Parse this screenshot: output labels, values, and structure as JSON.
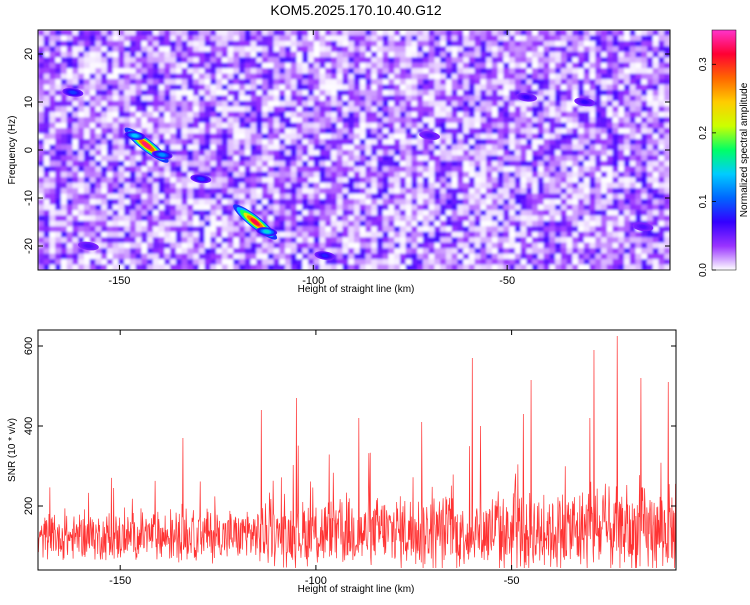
{
  "title": "KOM5.2025.170.10.40.G12",
  "chart_data": [
    {
      "type": "heatmap",
      "xlabel": "Height of straight line (km)",
      "ylabel": "Frequency (Hz)",
      "xlim": [
        -171,
        -8
      ],
      "ylim": [
        -25,
        25
      ],
      "xticks": [
        -150,
        -100,
        -50
      ],
      "yticks": [
        -20,
        -10,
        0,
        10,
        20
      ],
      "colorbar": {
        "label": "Normalized spectral amplitude",
        "range": [
          0,
          0.35
        ],
        "ticks": [
          0.0,
          0.1,
          0.2,
          0.3
        ],
        "colors": [
          "#ffffff",
          "#9933ff",
          "#3300ff",
          "#0066ff",
          "#00ccff",
          "#00ff66",
          "#ccff00",
          "#ffcc00",
          "#ff6600",
          "#ff0033",
          "#ff33cc"
        ]
      },
      "peaks": [
        {
          "x": -143,
          "y": 1,
          "amplitude": 0.33
        },
        {
          "x": -146,
          "y": 3,
          "amplitude": 0.14
        },
        {
          "x": -139,
          "y": -1,
          "amplitude": 0.12
        },
        {
          "x": -115,
          "y": -15,
          "amplitude": 0.32
        },
        {
          "x": -112,
          "y": -17,
          "amplitude": 0.15
        },
        {
          "x": -129,
          "y": -6,
          "amplitude": 0.09
        },
        {
          "x": -162,
          "y": 12,
          "amplitude": 0.09
        },
        {
          "x": -97,
          "y": -22,
          "amplitude": 0.08
        },
        {
          "x": -45,
          "y": 11,
          "amplitude": 0.07
        },
        {
          "x": -30,
          "y": 10,
          "amplitude": 0.07
        },
        {
          "x": -70,
          "y": 3,
          "amplitude": 0.06
        },
        {
          "x": -15,
          "y": -16,
          "amplitude": 0.06
        },
        {
          "x": -158,
          "y": -20,
          "amplitude": 0.06
        }
      ],
      "noise_level": 0.04,
      "grid": false
    },
    {
      "type": "line",
      "xlabel": "Height of straight line (km)",
      "ylabel": "SNR (10 * v/v)",
      "xlim": [
        -171,
        -8
      ],
      "ylim": [
        40,
        640
      ],
      "xticks": [
        -150,
        -100,
        -50
      ],
      "yticks": [
        200,
        400,
        600
      ],
      "color": "#ff3333",
      "trend": {
        "x": [
          -171,
          -130,
          -100,
          -60,
          -8
        ],
        "mean": [
          120,
          125,
          130,
          135,
          140
        ],
        "spread": [
          60,
          75,
          100,
          110,
          130
        ]
      },
      "spikes": [
        {
          "x": -134,
          "y": 370
        },
        {
          "x": -114,
          "y": 440
        },
        {
          "x": -105,
          "y": 470
        },
        {
          "x": -89,
          "y": 420
        },
        {
          "x": -73,
          "y": 410
        },
        {
          "x": -60,
          "y": 570
        },
        {
          "x": -47,
          "y": 430
        },
        {
          "x": -30,
          "y": 420
        },
        {
          "x": -29,
          "y": 590
        },
        {
          "x": -23,
          "y": 625
        },
        {
          "x": -17,
          "y": 520
        },
        {
          "x": -10,
          "y": 510
        },
        {
          "x": -45,
          "y": 515
        },
        {
          "x": -58,
          "y": 400
        }
      ],
      "grid": false
    }
  ]
}
